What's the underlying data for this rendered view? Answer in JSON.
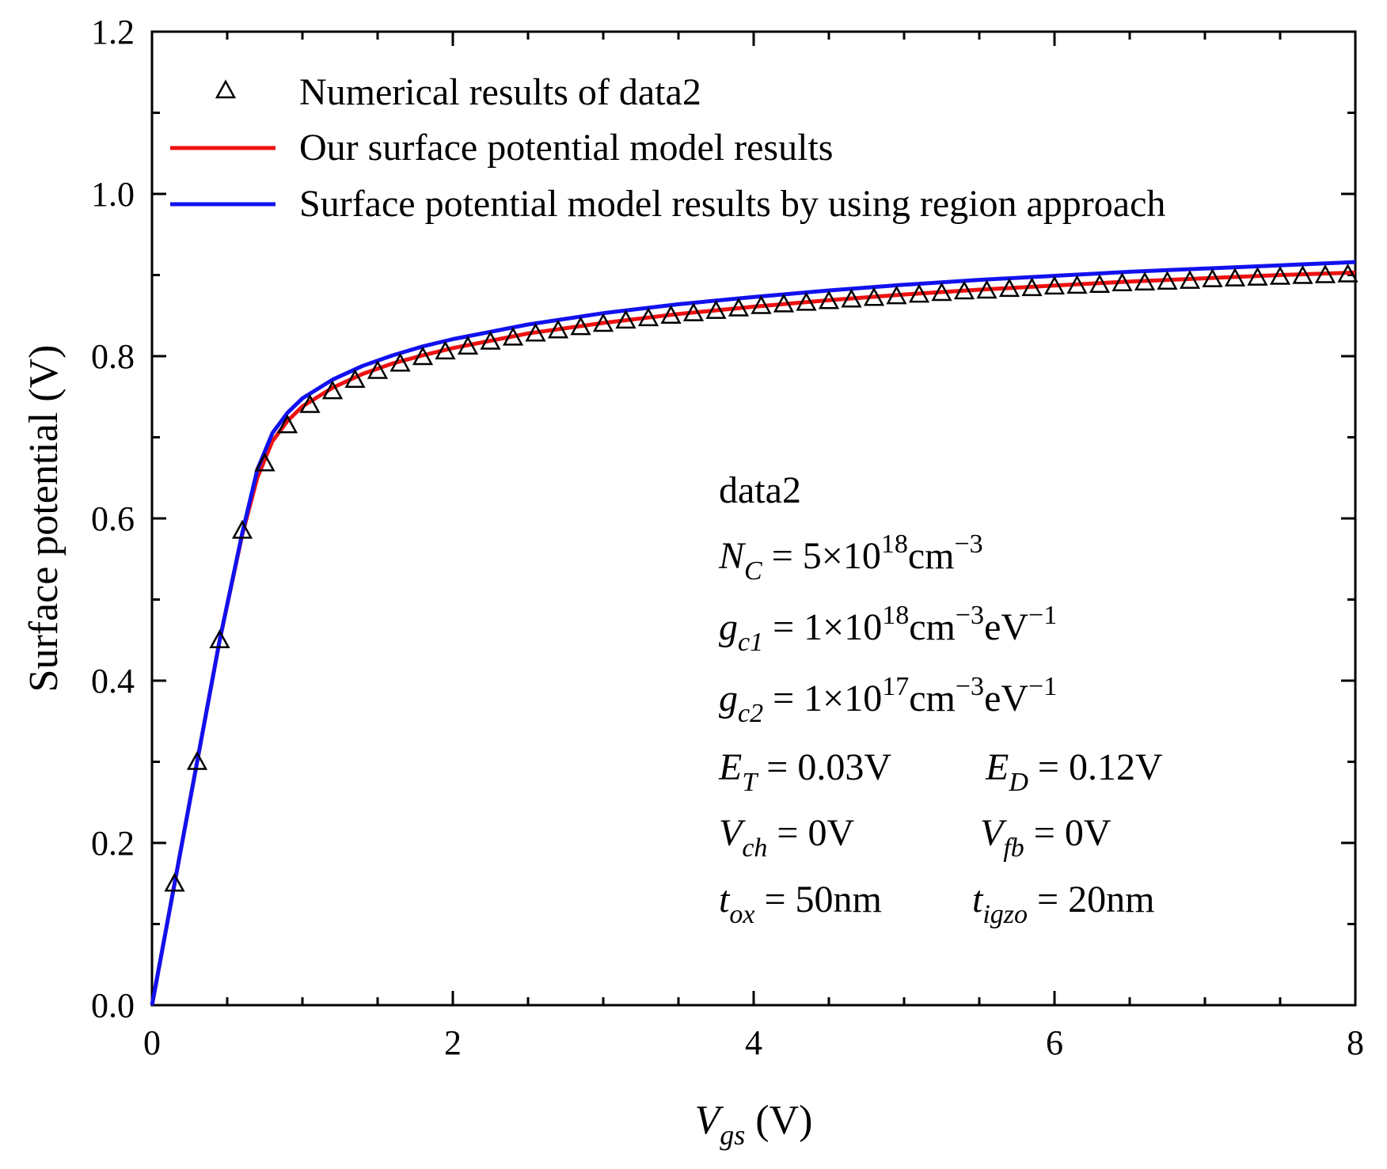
{
  "chart_data": {
    "type": "line",
    "title": "",
    "xlabel": {
      "var": "V",
      "sub": "gs",
      "unit": " (V)"
    },
    "ylabel": "Surface potential (V)",
    "xlim": [
      0,
      8
    ],
    "ylim": [
      0,
      1.2
    ],
    "xticks": [
      "0",
      "2",
      "4",
      "6",
      "8"
    ],
    "yticks": [
      "0.0",
      "0.2",
      "0.4",
      "0.6",
      "0.8",
      "1.0",
      "1.2"
    ],
    "grid": false,
    "legend_position": "top-left",
    "series": [
      {
        "name": "Numerical results of data2",
        "style": "triangle-marker",
        "color": "#000000",
        "x": [
          0.15,
          0.3,
          0.45,
          0.6,
          0.75,
          0.9,
          1.05,
          1.2,
          1.35,
          1.5,
          1.65,
          1.8,
          1.95,
          2.1,
          2.25,
          2.4,
          2.55,
          2.7,
          2.85,
          3.0,
          3.15,
          3.3,
          3.45,
          3.6,
          3.75,
          3.9,
          4.05,
          4.2,
          4.35,
          4.5,
          4.65,
          4.8,
          4.95,
          5.1,
          5.25,
          5.4,
          5.55,
          5.7,
          5.85,
          6.0,
          6.15,
          6.3,
          6.45,
          6.6,
          6.75,
          6.9,
          7.05,
          7.2,
          7.35,
          7.5,
          7.65,
          7.8,
          7.95
        ],
        "y": [
          0.15,
          0.3,
          0.45,
          0.585,
          0.668,
          0.715,
          0.74,
          0.757,
          0.771,
          0.782,
          0.791,
          0.799,
          0.806,
          0.812,
          0.818,
          0.823,
          0.828,
          0.832,
          0.836,
          0.84,
          0.844,
          0.847,
          0.85,
          0.853,
          0.856,
          0.859,
          0.862,
          0.864,
          0.866,
          0.868,
          0.87,
          0.872,
          0.874,
          0.876,
          0.878,
          0.88,
          0.881,
          0.883,
          0.884,
          0.886,
          0.887,
          0.888,
          0.89,
          0.891,
          0.892,
          0.893,
          0.895,
          0.896,
          0.897,
          0.898,
          0.899,
          0.9,
          0.901
        ]
      },
      {
        "name": "Our surface potential model results",
        "style": "line",
        "color": "#ee1111",
        "x": [
          0,
          0.15,
          0.3,
          0.45,
          0.6,
          0.7,
          0.8,
          0.9,
          1.0,
          1.2,
          1.4,
          1.6,
          1.8,
          2.0,
          2.5,
          3.0,
          3.5,
          4.0,
          4.5,
          5.0,
          5.5,
          6.0,
          6.5,
          7.0,
          7.5,
          8.0
        ],
        "y": [
          0,
          0.15,
          0.3,
          0.45,
          0.58,
          0.65,
          0.695,
          0.72,
          0.738,
          0.761,
          0.778,
          0.791,
          0.801,
          0.81,
          0.828,
          0.841,
          0.852,
          0.861,
          0.869,
          0.876,
          0.882,
          0.887,
          0.892,
          0.896,
          0.9,
          0.903
        ]
      },
      {
        "name": "Surface potential model results by using region approach",
        "style": "line",
        "color": "#1111ee",
        "x": [
          0,
          0.15,
          0.3,
          0.45,
          0.6,
          0.7,
          0.8,
          0.9,
          1.0,
          1.2,
          1.4,
          1.6,
          1.8,
          2.0,
          2.5,
          3.0,
          3.5,
          4.0,
          4.5,
          5.0,
          5.5,
          6.0,
          6.5,
          7.0,
          7.5,
          8.0
        ],
        "y": [
          0,
          0.15,
          0.3,
          0.45,
          0.582,
          0.66,
          0.705,
          0.73,
          0.748,
          0.771,
          0.788,
          0.801,
          0.812,
          0.821,
          0.839,
          0.853,
          0.864,
          0.873,
          0.881,
          0.888,
          0.894,
          0.899,
          0.904,
          0.908,
          0.912,
          0.916
        ]
      }
    ],
    "annotations": {
      "dataset": "data2",
      "nc": {
        "var": "N",
        "sub": "C",
        "eq": " = 5×10",
        "exp": "18",
        "unit": "cm",
        "unit_exp": "−3"
      },
      "gc1": {
        "var": "g",
        "sub": "c1",
        "eq": " = 1×10",
        "exp": "18",
        "unit": "cm",
        "unit_exp": "−3",
        "unit2": "eV",
        "unit2_exp": "−1"
      },
      "gc2": {
        "var": "g",
        "sub": "c2",
        "eq": " = 1×10",
        "exp": "17",
        "unit": "cm",
        "unit_exp": "−3",
        "unit2": "eV",
        "unit2_exp": "−1"
      },
      "et": {
        "var": "E",
        "sub": "T",
        "val": " = 0.03V"
      },
      "ed": {
        "var": "E",
        "sub": "D",
        "val": " = 0.12V"
      },
      "vch": {
        "var": "V",
        "sub": "ch",
        "val": " = 0V"
      },
      "vfb": {
        "var": "V",
        "sub": "fb",
        "val": " = 0V"
      },
      "tox": {
        "var": "t",
        "sub": "ox",
        "val": " = 50nm"
      },
      "tigzo": {
        "var": "t",
        "sub": "igzo",
        "val": " = 20nm"
      }
    }
  }
}
